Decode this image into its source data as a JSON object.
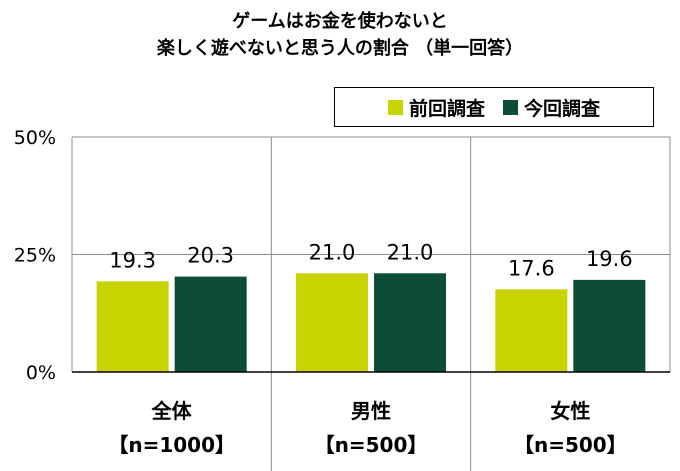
{
  "title": {
    "line1": "ゲームはお金を使わないと",
    "line2": "楽しく遊べないと思う人の割合 （単一回答）"
  },
  "colors": {
    "previous": "#c8d400",
    "current": "#0e4d35",
    "grid": "#8c8c8c"
  },
  "chart_data": {
    "type": "bar",
    "categories": [
      "全体",
      "男性",
      "女性"
    ],
    "category_sublabels": [
      "【n=1000】",
      "【n=500】",
      "【n=500】"
    ],
    "series": [
      {
        "name": "前回調査",
        "values": [
          19.3,
          21.0,
          17.6
        ],
        "labels": [
          "19.3",
          "21.0",
          "17.6"
        ]
      },
      {
        "name": "今回調査",
        "values": [
          20.3,
          21.0,
          19.6
        ],
        "labels": [
          "20.3",
          "21.0",
          "19.6"
        ]
      }
    ],
    "y_ticks": [
      "0%",
      "25%",
      "50%"
    ],
    "y_tick_values": [
      0,
      25,
      50
    ],
    "ylim": [
      0,
      50
    ],
    "legend_position": "top-right",
    "grid": true
  }
}
